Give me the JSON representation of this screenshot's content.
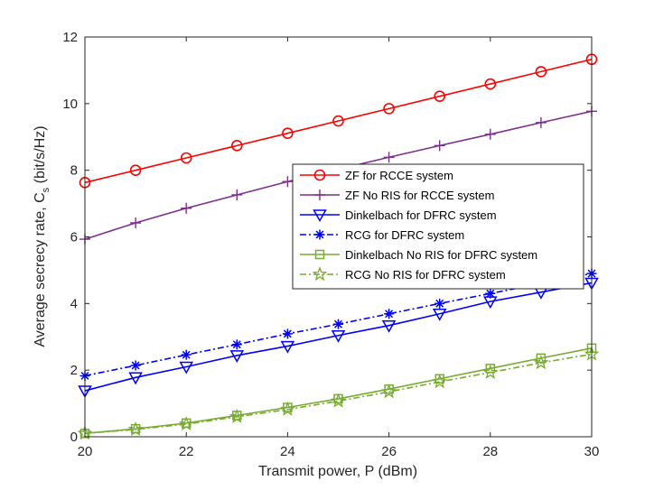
{
  "chart_data": {
    "type": "line",
    "title": "",
    "xlabel": "Transmit power, P (dBm)",
    "ylabel_main": "Average secrecy rate, C",
    "ylabel_sub": "s",
    "ylabel_units": " (bit/s/Hz)",
    "xlim": [
      20,
      30
    ],
    "ylim": [
      0,
      12
    ],
    "x_ticks": [
      20,
      22,
      24,
      26,
      28,
      30
    ],
    "y_ticks": [
      0,
      2,
      4,
      6,
      8,
      10,
      12
    ],
    "grid": false,
    "legend_position": "center-right",
    "x": [
      20,
      21,
      22,
      23,
      24,
      25,
      26,
      27,
      28,
      29,
      30
    ],
    "series": [
      {
        "name": "ZF for RCCE system",
        "color": "#ff0000",
        "marker": "circle",
        "dash": "solid",
        "values": [
          7.63,
          8.0,
          8.37,
          8.74,
          9.11,
          9.48,
          9.85,
          10.22,
          10.59,
          10.96,
          11.33
        ]
      },
      {
        "name": "ZF No RIS for RCCE system",
        "color": "#7e2f8e",
        "marker": "plus",
        "dash": "solid",
        "values": [
          5.93,
          6.42,
          6.86,
          7.26,
          7.66,
          8.03,
          8.39,
          8.74,
          9.08,
          9.43,
          9.77
        ]
      },
      {
        "name": "Dinkelbach for DFRC system",
        "color": "#0000ff",
        "marker": "triangle-down",
        "dash": "solid",
        "values": [
          1.38,
          1.78,
          2.1,
          2.44,
          2.72,
          3.04,
          3.34,
          3.69,
          4.06,
          4.34,
          4.62
        ]
      },
      {
        "name": "RCG for DFRC system",
        "color": "#0000ff",
        "marker": "asterisk",
        "dash": "dashdot",
        "values": [
          1.83,
          2.14,
          2.46,
          2.77,
          3.09,
          3.38,
          3.69,
          4.0,
          4.3,
          4.6,
          4.9
        ]
      },
      {
        "name": "Dinkelbach No RIS for DFRC system",
        "color": "#77ac30",
        "marker": "square",
        "dash": "solid",
        "values": [
          0.1,
          0.24,
          0.41,
          0.64,
          0.88,
          1.14,
          1.43,
          1.74,
          2.05,
          2.36,
          2.66
        ]
      },
      {
        "name": "RCG No RIS for DFRC system",
        "color": "#77ac30",
        "marker": "pentagram",
        "dash": "dashdot",
        "values": [
          0.1,
          0.22,
          0.38,
          0.6,
          0.82,
          1.07,
          1.35,
          1.65,
          1.93,
          2.22,
          2.48
        ]
      }
    ]
  }
}
